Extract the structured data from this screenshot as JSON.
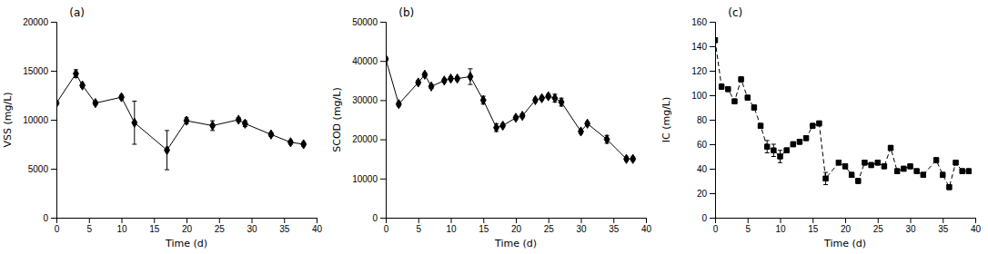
{
  "chart_data": [
    {
      "type": "line",
      "title": "(a)",
      "xlabel": "Time (d)",
      "ylabel": "VSS (mg/L)",
      "x": [
        0,
        3,
        4,
        6,
        10,
        12,
        17,
        20,
        24,
        28,
        29,
        33,
        36,
        38
      ],
      "values": [
        11700,
        14700,
        13500,
        11700,
        12300,
        9700,
        6900,
        9900,
        9400,
        10000,
        9600,
        8500,
        7700,
        7500
      ],
      "error": [
        200,
        400,
        200,
        200,
        200,
        2200,
        2000,
        300,
        500,
        200,
        300,
        200,
        200,
        200
      ],
      "xlim": [
        0,
        40
      ],
      "xticks": [
        0,
        5,
        10,
        15,
        20,
        25,
        30,
        35,
        40
      ],
      "ylim": [
        0,
        20000
      ],
      "yticks": [
        0,
        5000,
        10000,
        15000,
        20000
      ],
      "color": "black",
      "marker": "diamond",
      "line_style": "solid",
      "grid": false
    },
    {
      "type": "line",
      "title": "(b)",
      "xlabel": "Time (d)",
      "ylabel": "SCOD (mg/L)",
      "x": [
        0,
        2,
        5,
        6,
        7,
        9,
        10,
        11,
        13,
        15,
        17,
        18,
        20,
        21,
        23,
        24,
        25,
        26,
        27,
        30,
        31,
        34,
        37,
        38
      ],
      "values": [
        40500,
        29000,
        34500,
        36500,
        33500,
        35000,
        35500,
        35500,
        36000,
        30000,
        23000,
        23500,
        25500,
        26000,
        30000,
        30500,
        31000,
        30500,
        29500,
        22000,
        24000,
        20000,
        15000,
        15000
      ],
      "error": [
        500,
        500,
        500,
        500,
        500,
        500,
        500,
        500,
        2000,
        1000,
        1000,
        500,
        500,
        500,
        500,
        500,
        500,
        1000,
        1000,
        500,
        500,
        1000,
        500,
        500
      ],
      "xlim": [
        0,
        40
      ],
      "xticks": [
        0,
        5,
        10,
        15,
        20,
        25,
        30,
        35,
        40
      ],
      "ylim": [
        0,
        50000
      ],
      "yticks": [
        0,
        10000,
        20000,
        30000,
        40000,
        50000
      ],
      "color": "black",
      "marker": "diamond",
      "line_style": "solid",
      "grid": false
    },
    {
      "type": "line",
      "title": "(c)",
      "xlabel": "Time (d)",
      "ylabel": "IC (mg/L)",
      "x": [
        0,
        1,
        2,
        3,
        4,
        5,
        6,
        7,
        8,
        9,
        10,
        11,
        12,
        13,
        14,
        15,
        16,
        17,
        19,
        20,
        21,
        22,
        23,
        24,
        25,
        26,
        27,
        28,
        29,
        30,
        31,
        32,
        34,
        35,
        36,
        37,
        38,
        39
      ],
      "values": [
        145,
        107,
        105,
        95,
        113,
        98,
        90,
        75,
        58,
        55,
        50,
        55,
        60,
        62,
        65,
        75,
        77,
        32,
        45,
        42,
        35,
        30,
        45,
        43,
        45,
        42,
        57,
        38,
        40,
        42,
        38,
        35,
        47,
        35,
        25,
        45,
        38,
        38
      ],
      "error": [
        2,
        2,
        2,
        2,
        2,
        2,
        2,
        2,
        5,
        5,
        5,
        2,
        2,
        2,
        2,
        2,
        2,
        5,
        2,
        2,
        2,
        2,
        2,
        2,
        2,
        2,
        2,
        2,
        2,
        2,
        2,
        2,
        2,
        2,
        2,
        2,
        2,
        2
      ],
      "xlim": [
        0,
        40
      ],
      "xticks": [
        0,
        5,
        10,
        15,
        20,
        25,
        30,
        35,
        40
      ],
      "ylim": [
        0,
        160
      ],
      "yticks": [
        0,
        20,
        40,
        60,
        80,
        100,
        120,
        140,
        160
      ],
      "color": "black",
      "marker": "square",
      "line_style": "dashed",
      "grid": false
    }
  ]
}
